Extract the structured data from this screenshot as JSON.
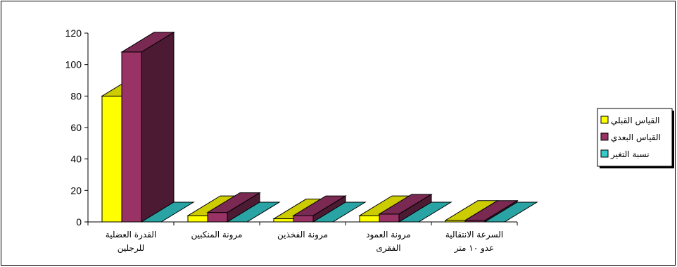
{
  "chart_data": {
    "type": "bar",
    "categories": [
      [
        "القدرة العضلية",
        "للرجلين"
      ],
      [
        "مرونة المنكبين"
      ],
      [
        "مرونة الفخذين"
      ],
      [
        "مرونة العمود",
        "الفقرى"
      ],
      [
        "السرعة الانتقالية",
        "عدو ١٠ متر"
      ]
    ],
    "series": [
      {
        "name": "القياس القبلي",
        "values": [
          80,
          4,
          2,
          4,
          1
        ]
      },
      {
        "name": "القياس البعدي",
        "values": [
          108,
          6,
          4,
          5,
          1
        ]
      },
      {
        "name": "نسبة التغير",
        "values": [
          0,
          0,
          0,
          0,
          0
        ]
      }
    ],
    "ylim": [
      0,
      120
    ],
    "yticks": [
      "0",
      "20",
      "40",
      "60",
      "80",
      "100",
      "120"
    ],
    "legend_position": "right",
    "colors": {
      "series": [
        "#ffff00",
        "#993366",
        "#33cccc"
      ],
      "series_top": [
        "#cccc00",
        "#7a2952",
        "#29a3a3"
      ],
      "series_side": [
        "#999900",
        "#4d1a33",
        "#1f7a7a"
      ],
      "outline": "#000000"
    }
  }
}
